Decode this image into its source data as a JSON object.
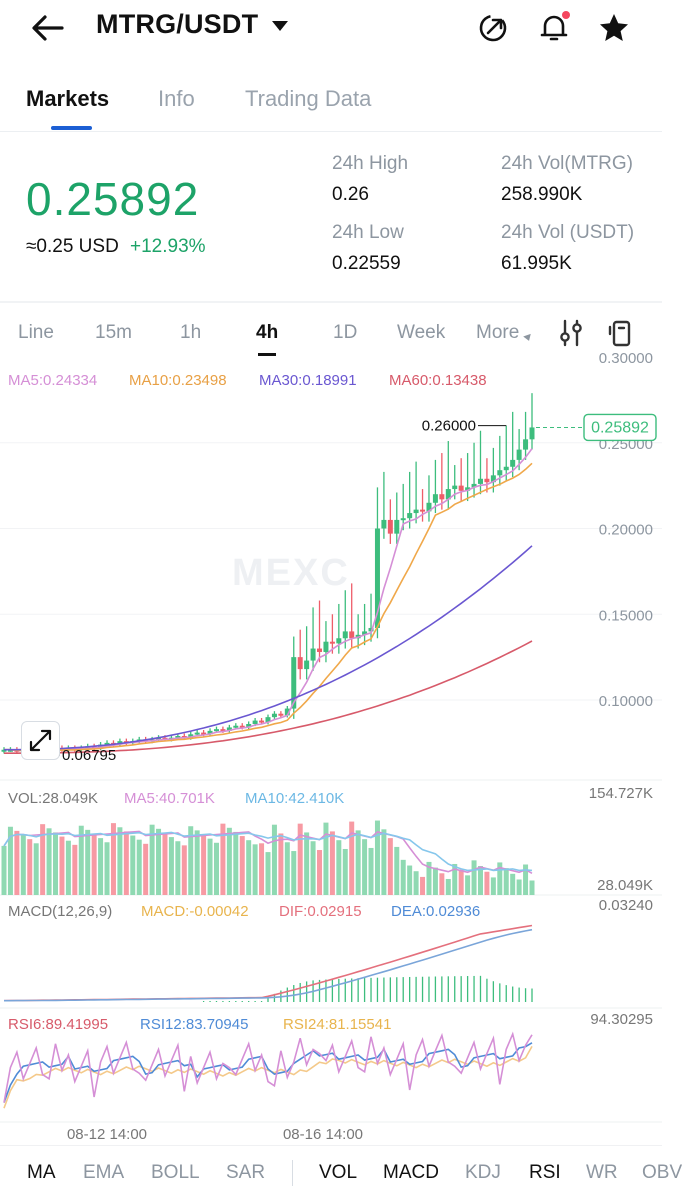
{
  "header": {
    "pair": "MTRG/USDT",
    "icons": [
      "back-arrow-icon",
      "share-icon",
      "bell-icon",
      "star-icon"
    ],
    "notification_dot_color": "#f5475f"
  },
  "tabs": [
    {
      "label": "Markets",
      "active": true
    },
    {
      "label": "Info",
      "active": false
    },
    {
      "label": "Trading Data",
      "active": false
    }
  ],
  "ticker": {
    "price": "0.25892",
    "usd": "≈0.25 USD",
    "change": "+12.93%",
    "high_label": "24h High",
    "high": "0.26",
    "low_label": "24h Low",
    "low": "0.22559",
    "vol_mtrg_label": "24h Vol(MTRG)",
    "vol_mtrg": "258.990K",
    "vol_usdt_label": "24h Vol (USDT)",
    "vol_usdt": "61.995K"
  },
  "timeframes": [
    {
      "label": "Line"
    },
    {
      "label": "15m"
    },
    {
      "label": "1h"
    },
    {
      "label": "4h",
      "active": true
    },
    {
      "label": "1D"
    },
    {
      "label": "Week"
    },
    {
      "label": "More"
    }
  ],
  "watermark": "MEXC",
  "main_legend": {
    "ma5": "MA5:0.24334",
    "ma10": "MA10:0.23498",
    "ma30": "MA30:0.18991",
    "ma60": "MA60:0.13438"
  },
  "price_axis": [
    "0.30000",
    "0.25000",
    "0.20000",
    "0.15000",
    "0.10000"
  ],
  "marks": {
    "high": "0.26000",
    "low": "0.06795",
    "last": "0.25892"
  },
  "vol_legend": {
    "vol": "VOL:28.049K",
    "ma5": "MA5:40.701K",
    "ma10": "MA10:42.410K",
    "max": "154.727K",
    "current": "28.049K"
  },
  "macd_legend": {
    "title": "MACD(12,26,9)",
    "macd": "MACD:-0.00042",
    "dif": "DIF:0.02915",
    "dea": "DEA:0.02936",
    "max": "0.03240"
  },
  "rsi_legend": {
    "rsi6": "RSI6:89.41995",
    "rsi12": "RSI12:83.70945",
    "rsi24": "RSI24:81.15541",
    "max": "94.30295"
  },
  "time_axis": [
    "08-12 14:00",
    "08-16 14:00"
  ],
  "indicators": [
    {
      "label": "MA",
      "on": true
    },
    {
      "label": "EMA",
      "on": false
    },
    {
      "label": "BOLL",
      "on": false
    },
    {
      "label": "SAR",
      "on": false
    },
    {
      "label": "VOL",
      "on": true
    },
    {
      "label": "MACD",
      "on": true
    },
    {
      "label": "KDJ",
      "on": false
    },
    {
      "label": "RSI",
      "on": true
    },
    {
      "label": "WR",
      "on": false
    },
    {
      "label": "OBV",
      "on": false
    }
  ],
  "colors": {
    "up": "#3dbd7d",
    "down": "#ee5d69",
    "vol_up": "#8fd9b2",
    "vol_down": "#f79aa3",
    "ma5": "#d58fd6",
    "ma10": "#f0a84a",
    "ma30": "#6a57d1",
    "ma60": "#d75a6a",
    "vol_ma10": "#86c7ec",
    "dif": "#e4707d",
    "dea": "#7aa5d9",
    "rsi12": "#4f8bd6",
    "rsi24": "#f4c98a"
  },
  "chart_data": {
    "type": "candlestick",
    "interval": "4h",
    "pair": "MTRG/USDT",
    "y_axis_ticks": [
      0.3,
      0.25,
      0.2,
      0.15,
      0.1
    ],
    "ylim": [
      0.065,
      0.305
    ],
    "visible_high": 0.26,
    "visible_low": 0.06795,
    "last_price": 0.25892,
    "x_ticks": [
      "08-12 14:00",
      "08-16 14:00"
    ],
    "candles_close": [
      0.071,
      0.071,
      0.07,
      0.071,
      0.07,
      0.071,
      0.07,
      0.071,
      0.072,
      0.071,
      0.072,
      0.071,
      0.072,
      0.073,
      0.072,
      0.074,
      0.075,
      0.074,
      0.076,
      0.075,
      0.076,
      0.077,
      0.076,
      0.077,
      0.078,
      0.077,
      0.078,
      0.079,
      0.078,
      0.08,
      0.081,
      0.08,
      0.082,
      0.083,
      0.082,
      0.084,
      0.085,
      0.084,
      0.086,
      0.088,
      0.087,
      0.09,
      0.092,
      0.091,
      0.095,
      0.125,
      0.118,
      0.123,
      0.13,
      0.128,
      0.134,
      0.133,
      0.136,
      0.14,
      0.136,
      0.138,
      0.14,
      0.142,
      0.2,
      0.205,
      0.197,
      0.205,
      0.206,
      0.209,
      0.211,
      0.21,
      0.215,
      0.22,
      0.217,
      0.223,
      0.225,
      0.222,
      0.224,
      0.226,
      0.229,
      0.227,
      0.231,
      0.234,
      0.236,
      0.24,
      0.246,
      0.252,
      0.25892
    ],
    "ma_last": {
      "MA5": 0.24334,
      "MA10": 0.23498,
      "MA30": 0.18991,
      "MA60": 0.13438
    },
    "volume_last_k": 28.049,
    "volume_max_k": 154.727,
    "macd": {
      "MACD": -0.00042,
      "DIF": 0.02915,
      "DEA": 0.02936,
      "max": 0.0324
    },
    "rsi": {
      "RSI6": 89.41995,
      "RSI12": 83.70945,
      "RSI24": 81.15541,
      "max": 94.30295
    }
  }
}
